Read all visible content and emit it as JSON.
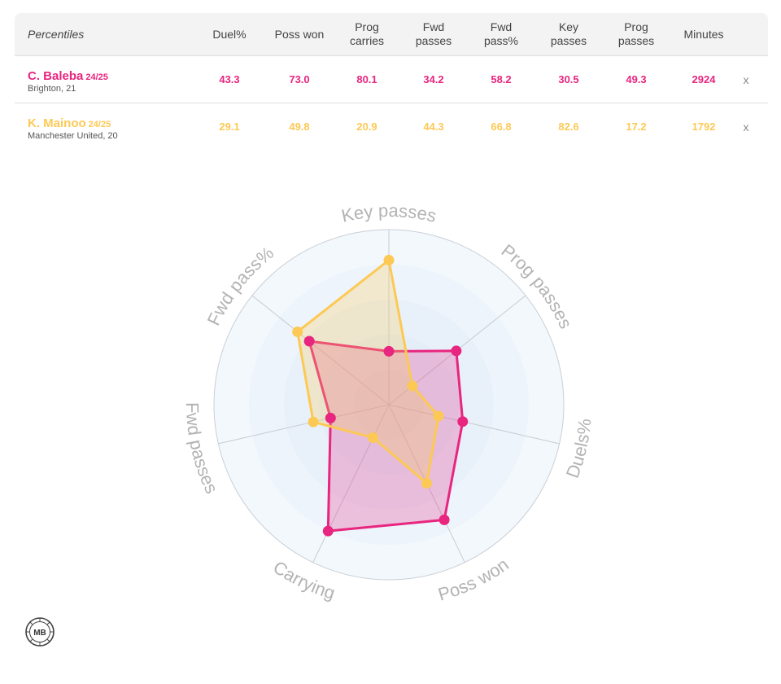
{
  "table": {
    "corner_label": "Percentiles",
    "headers": [
      "Duel%",
      "Poss won",
      "Prog\ncarries",
      "Fwd\npasses",
      "Fwd\npass%",
      "Key\npasses",
      "Prog\npasses",
      "Minutes"
    ],
    "close_glyph": "x",
    "players": [
      {
        "name": "C. Baleba",
        "season": "24/25",
        "club": "Brighton, 21",
        "color": "#e8257f",
        "values": [
          "43.3",
          "73.0",
          "80.1",
          "34.2",
          "58.2",
          "30.5",
          "49.3",
          "2924"
        ]
      },
      {
        "name": "K. Mainoo",
        "season": "24/25",
        "club": "Manchester United, 20",
        "color": "#fdc955",
        "values": [
          "29.1",
          "49.8",
          "20.9",
          "44.3",
          "66.8",
          "82.6",
          "17.2",
          "1792"
        ]
      }
    ]
  },
  "chart_data": {
    "type": "radar",
    "axes": [
      "Key passes",
      "Prog passes",
      "Duels%",
      "Poss won",
      "Carrying",
      "Fwd passes",
      "Fwd pass%"
    ],
    "range": [
      0,
      100
    ],
    "series": [
      {
        "name": "C. Baleba",
        "color": "#e8257f",
        "values": [
          30.5,
          49.3,
          43.3,
          73.0,
          80.1,
          34.2,
          58.2
        ]
      },
      {
        "name": "K. Mainoo",
        "color": "#fdc955",
        "values": [
          82.6,
          17.2,
          29.1,
          49.8,
          20.9,
          44.3,
          66.8
        ]
      }
    ]
  },
  "logo": {
    "text": "MB"
  }
}
